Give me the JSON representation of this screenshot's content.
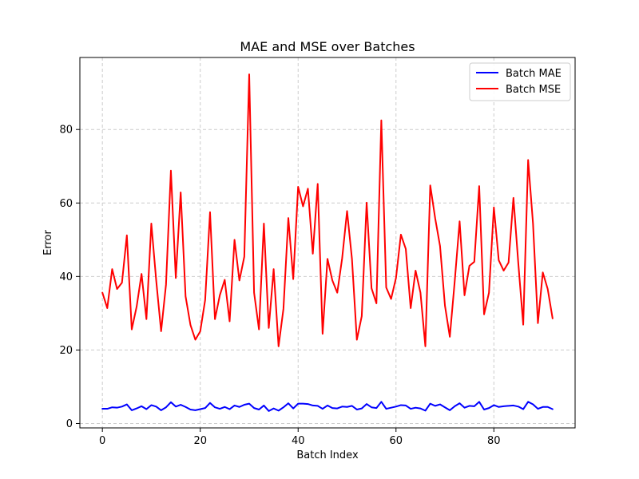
{
  "chart_data": {
    "type": "line",
    "title": "MAE and MSE over Batches",
    "xlabel": "Batch Index",
    "ylabel": "Error",
    "xlim": [
      -4.6,
      96.6
    ],
    "ylim": [
      -1.2,
      99.6
    ],
    "x_ticks": [
      0,
      20,
      40,
      60,
      80
    ],
    "y_ticks": [
      0,
      20,
      40,
      60,
      80
    ],
    "grid": true,
    "legend_position": "top-right",
    "x": [
      0,
      1,
      2,
      3,
      4,
      5,
      6,
      7,
      8,
      9,
      10,
      11,
      12,
      13,
      14,
      15,
      16,
      17,
      18,
      19,
      20,
      21,
      22,
      23,
      24,
      25,
      26,
      27,
      28,
      29,
      30,
      31,
      32,
      33,
      34,
      35,
      36,
      37,
      38,
      39,
      40,
      41,
      42,
      43,
      44,
      45,
      46,
      47,
      48,
      49,
      50,
      51,
      52,
      53,
      54,
      55,
      56,
      57,
      58,
      59,
      60,
      61,
      62,
      63,
      64,
      65,
      66,
      67,
      68,
      69,
      70,
      71,
      72,
      73,
      74,
      75,
      76,
      77,
      78,
      79,
      80,
      81,
      82,
      83,
      84,
      85,
      86,
      87,
      88,
      89,
      90,
      91,
      92
    ],
    "series": [
      {
        "name": "Batch MAE",
        "color": "#0000ff",
        "values": [
          4.0,
          4.0,
          4.4,
          4.3,
          4.6,
          5.2,
          3.6,
          4.1,
          4.7,
          3.9,
          5.0,
          4.6,
          3.6,
          4.4,
          5.8,
          4.6,
          5.1,
          4.5,
          3.8,
          3.6,
          3.9,
          4.2,
          5.6,
          4.4,
          4.0,
          4.5,
          3.9,
          4.9,
          4.5,
          5.1,
          5.4,
          4.2,
          3.8,
          4.9,
          3.4,
          4.1,
          3.5,
          4.4,
          5.5,
          4.1,
          5.4,
          5.4,
          5.3,
          4.9,
          4.8,
          4.0,
          4.9,
          4.2,
          4.1,
          4.6,
          4.5,
          4.8,
          3.8,
          4.1,
          5.3,
          4.4,
          4.2,
          5.9,
          4.0,
          4.3,
          4.6,
          5.0,
          4.9,
          4.0,
          4.3,
          4.1,
          3.5,
          5.4,
          4.8,
          5.2,
          4.4,
          3.6,
          4.7,
          5.5,
          4.3,
          4.8,
          4.7,
          5.9,
          3.8,
          4.2,
          5.0,
          4.5,
          4.7,
          4.8,
          4.9,
          4.6,
          3.9,
          5.9,
          5.2,
          4.0,
          4.5,
          4.5,
          3.9
        ]
      },
      {
        "name": "Batch MSE",
        "color": "#ff0000",
        "values": [
          35.6,
          31.4,
          42.0,
          36.6,
          38.3,
          51.2,
          25.6,
          31.8,
          40.7,
          28.4,
          54.4,
          38.9,
          25.1,
          37.8,
          68.8,
          39.6,
          62.9,
          34.6,
          26.8,
          22.8,
          25.1,
          33.6,
          57.5,
          28.4,
          34.9,
          39.1,
          27.8,
          50.0,
          38.9,
          45.4,
          95.0,
          35.6,
          25.6,
          54.4,
          26.0,
          42.0,
          21.0,
          31.2,
          55.9,
          39.3,
          64.4,
          59.1,
          63.9,
          46.2,
          65.2,
          24.4,
          44.8,
          38.9,
          35.6,
          45.0,
          57.8,
          44.8,
          22.8,
          29.2,
          60.1,
          36.8,
          32.7,
          82.5,
          37.0,
          33.9,
          39.6,
          51.4,
          47.5,
          31.4,
          41.6,
          35.6,
          21.0,
          64.8,
          55.9,
          48.3,
          32.1,
          23.6,
          38.7,
          55.0,
          34.9,
          42.9,
          44.0,
          64.6,
          29.7,
          35.6,
          58.8,
          44.4,
          41.6,
          43.8,
          61.4,
          43.5,
          26.9,
          71.7,
          54.4,
          27.3,
          41.1,
          36.6,
          28.6
        ]
      }
    ]
  }
}
